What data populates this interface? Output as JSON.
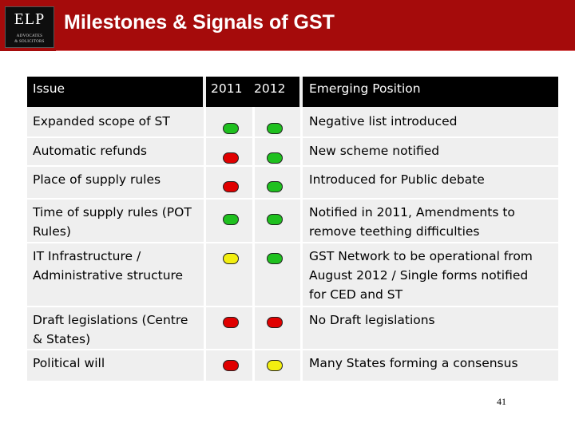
{
  "header": {
    "logo_text": "ELP",
    "logo_sub1": "ADVOCATES",
    "logo_sub2": "& SOLICITORS",
    "title": "Milestones & Signals of GST",
    "background_color": "#a50b0b"
  },
  "table": {
    "headers": {
      "issue": "Issue",
      "year1": "2011",
      "year2": "2012",
      "position": "Emerging Position"
    },
    "status_colors": {
      "green": "#1fc01f",
      "red": "#e00000",
      "yellow": "#f2ee10"
    },
    "rows": [
      {
        "issue": [
          "Expanded scope of ST"
        ],
        "status_2011": "green",
        "status_2012": "green",
        "position": [
          "Negative list introduced"
        ]
      },
      {
        "issue": [
          "Automatic refunds"
        ],
        "status_2011": "red",
        "status_2012": "green",
        "position": [
          "New scheme notified"
        ]
      },
      {
        "issue": [
          "Place of supply rules"
        ],
        "status_2011": "red",
        "status_2012": "green",
        "position": [
          "Introduced for Public debate"
        ]
      },
      {
        "issue": [
          "Time of supply rules (POT",
          "Rules)"
        ],
        "status_2011": "green",
        "status_2012": "green",
        "position": [
          "Notified in 2011, Amendments to",
          "remove teething difficulties"
        ]
      },
      {
        "issue": [
          "IT Infrastructure /",
          "Administrative structure"
        ],
        "status_2011": "yellow",
        "status_2012": "green",
        "position": [
          "GST Network to be operational from",
          "August 2012 / Single forms notified",
          "for CED and ST"
        ]
      },
      {
        "issue": [
          "Draft legislations (Centre",
          "& States)"
        ],
        "status_2011": "red",
        "status_2012": "red",
        "position": [
          "No Draft legislations"
        ]
      },
      {
        "issue": [
          "Political will"
        ],
        "status_2011": "red",
        "status_2012": "yellow",
        "position": [
          "Many States forming a consensus"
        ]
      }
    ]
  },
  "page_number": "41"
}
